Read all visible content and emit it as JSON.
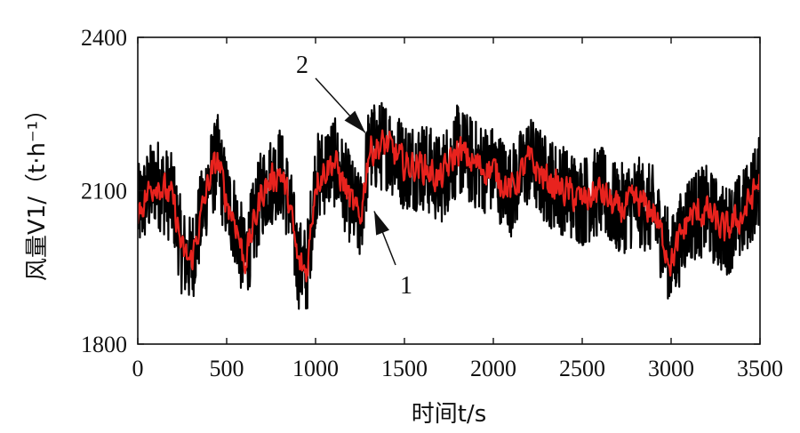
{
  "chart_data": {
    "type": "line",
    "xlabel": "时间t/s",
    "ylabel": "风量V1/（t·h⁻¹）",
    "xlim": [
      0,
      3500
    ],
    "ylim": [
      1800,
      2400
    ],
    "xticks": [
      "0",
      "500",
      "1000",
      "1500",
      "2000",
      "2500",
      "3000",
      "3500"
    ],
    "yticks": [
      "1800",
      "2100",
      "2400"
    ],
    "grid": false,
    "series": [
      {
        "name": "1",
        "color": "#000000",
        "description_values": "raw measured airflow (noisy)",
        "x": [
          0,
          100,
          200,
          250,
          300,
          400,
          450,
          500,
          550,
          600,
          700,
          800,
          850,
          900,
          950,
          1000,
          1100,
          1200,
          1250,
          1300,
          1400,
          1500,
          1600,
          1700,
          1800,
          1900,
          2000,
          2100,
          2200,
          2300,
          2400,
          2500,
          2600,
          2700,
          2800,
          2900,
          3000,
          3100,
          3200,
          3300,
          3400,
          3500
        ],
        "values": [
          2060,
          2120,
          2080,
          1980,
          1960,
          2120,
          2160,
          2080,
          2040,
          1960,
          2100,
          2140,
          2080,
          1960,
          1940,
          2120,
          2160,
          2080,
          2040,
          2180,
          2190,
          2150,
          2150,
          2120,
          2180,
          2150,
          2140,
          2100,
          2160,
          2120,
          2100,
          2080,
          2100,
          2060,
          2080,
          2060,
          1960,
          2050,
          2060,
          2020,
          2050,
          2120
        ],
        "spread": 90
      },
      {
        "name": "2",
        "color": "#e8231e",
        "description_values": "filtered airflow",
        "x": [
          0,
          100,
          200,
          250,
          300,
          400,
          450,
          500,
          550,
          600,
          700,
          800,
          850,
          900,
          950,
          1000,
          1100,
          1200,
          1250,
          1300,
          1400,
          1500,
          1600,
          1700,
          1800,
          1900,
          2000,
          2100,
          2200,
          2300,
          2400,
          2500,
          2600,
          2700,
          2800,
          2900,
          3000,
          3100,
          3200,
          3300,
          3400,
          3500
        ],
        "values": [
          2060,
          2120,
          2080,
          1980,
          1960,
          2120,
          2160,
          2080,
          2040,
          1960,
          2100,
          2140,
          2080,
          1960,
          1940,
          2120,
          2160,
          2080,
          2040,
          2180,
          2190,
          2150,
          2150,
          2120,
          2180,
          2150,
          2140,
          2100,
          2160,
          2120,
          2100,
          2080,
          2100,
          2060,
          2080,
          2060,
          1960,
          2050,
          2060,
          2020,
          2050,
          2120
        ],
        "spread": 45
      }
    ],
    "annotations": [
      {
        "label": "1",
        "series": "1",
        "at_x": 1290,
        "at_y": 2060
      },
      {
        "label": "2",
        "series": "2",
        "at_x": 1270,
        "at_y": 2210
      }
    ]
  }
}
